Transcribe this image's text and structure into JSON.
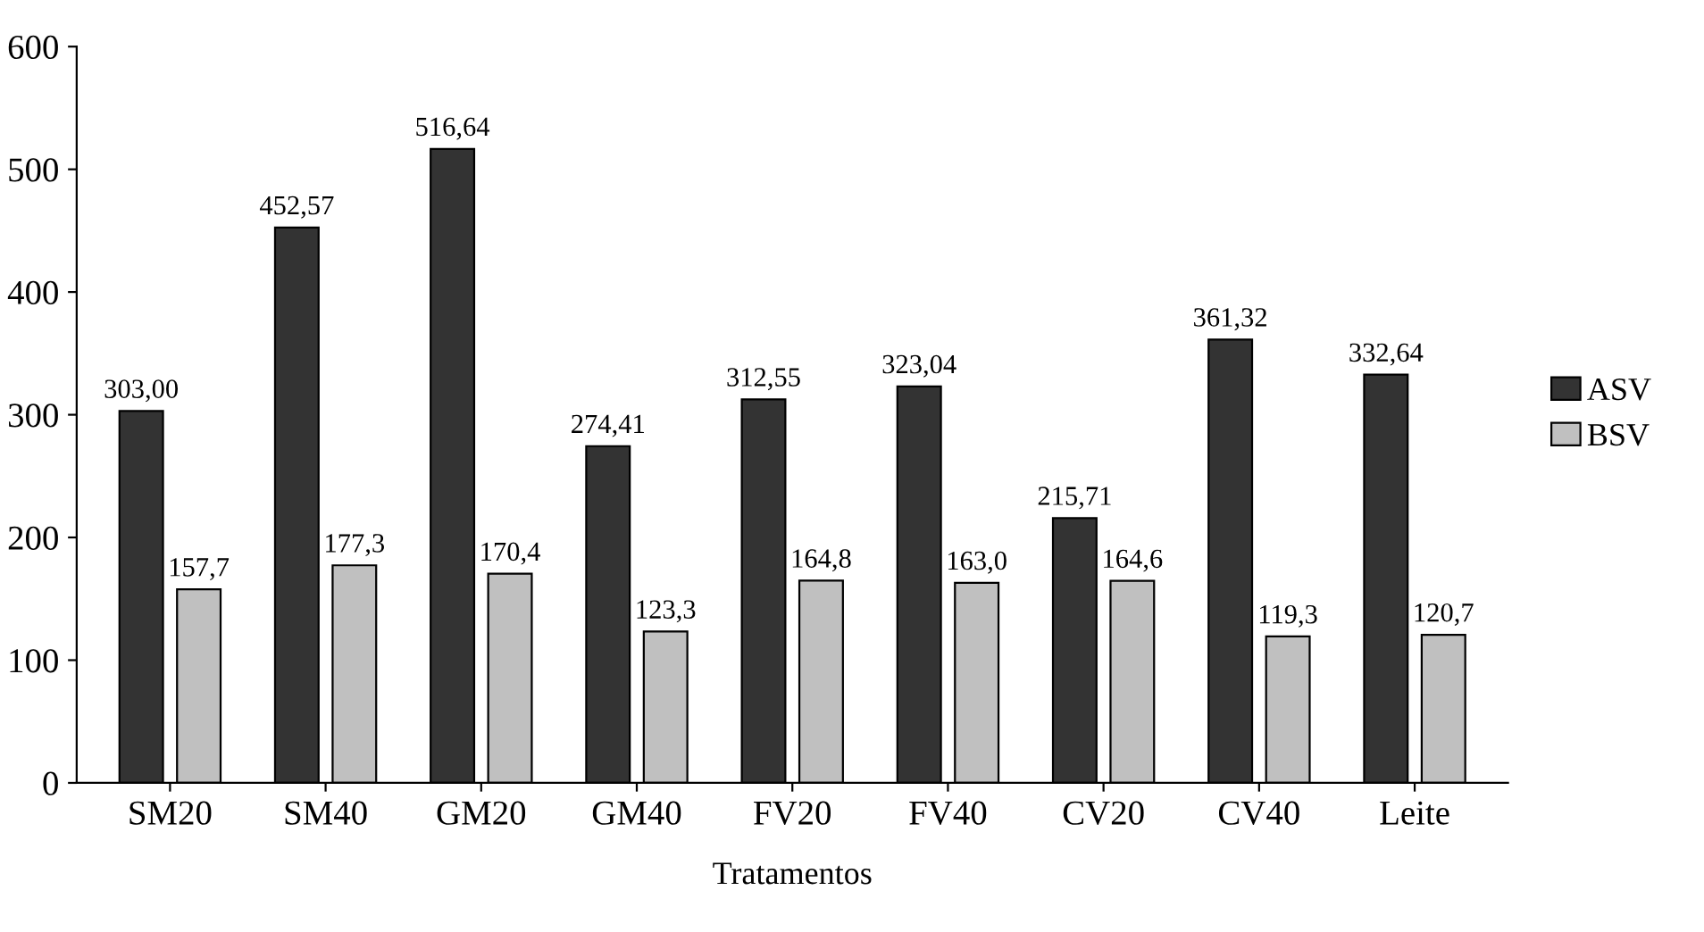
{
  "chart_data": {
    "type": "bar",
    "xlabel": "Tratamentos",
    "categories": [
      "SM20",
      "SM40",
      "GM20",
      "GM40",
      "FV20",
      "FV40",
      "CV20",
      "CV40",
      "Leite"
    ],
    "series": [
      {
        "name": "ASV",
        "color": "#333333",
        "values": [
          303.0,
          452.57,
          516.64,
          274.41,
          312.55,
          323.04,
          215.71,
          361.32,
          332.64
        ],
        "value_labels": [
          "303,00",
          "452,57",
          "516,64",
          "274,41",
          "312,55",
          "323,04",
          "215,71",
          "361,32",
          "332,64"
        ]
      },
      {
        "name": "BSV",
        "color": "#c0c0c0",
        "values": [
          157.7,
          177.3,
          170.4,
          123.3,
          164.8,
          163.0,
          164.6,
          119.3,
          120.7
        ],
        "value_labels": [
          "157,7",
          "177,3",
          "170,4",
          "123,3",
          "164,8",
          "163,0",
          "164,6",
          "119,3",
          "120,7"
        ]
      }
    ],
    "ylim": [
      0,
      600
    ],
    "yticks": [
      0,
      100,
      200,
      300,
      400,
      500,
      600
    ],
    "grid": false,
    "legend": "right"
  }
}
